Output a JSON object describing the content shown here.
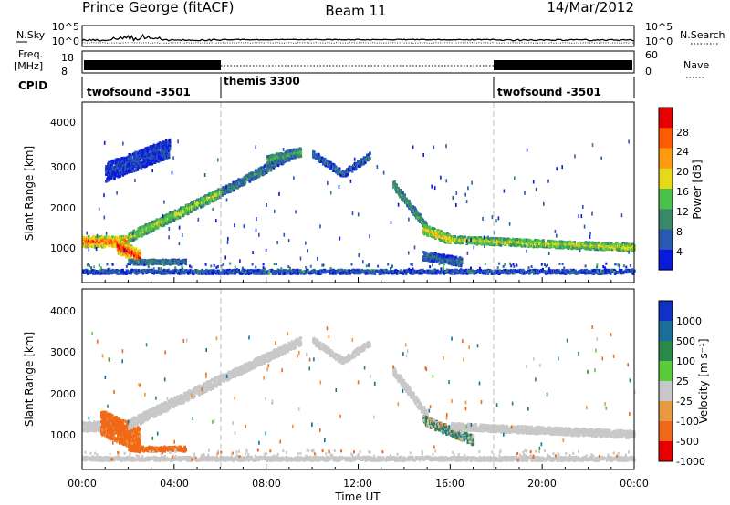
{
  "header": {
    "station": "Prince George (fitACF)",
    "beam": "Beam 11",
    "date": "14/Mar/2012"
  },
  "strips": {
    "nsky_label": "N.Sky",
    "nsearch_label": "N.Search",
    "freq_label_top": "Freq.",
    "freq_label_unit": "[MHz]",
    "nave_label": "Nave",
    "cpid_label": "CPID",
    "noise_left_ticks": [
      "10^5",
      "10^0"
    ],
    "noise_right_ticks": [
      "10^5",
      "10^0"
    ],
    "freq_left_ticks": [
      "18",
      "8"
    ],
    "nave_right_ticks": [
      "60",
      "0"
    ]
  },
  "cpid_segments": [
    {
      "name": "twofsound -3501",
      "start_hour": 0,
      "end_hour": 6
    },
    {
      "name": "themis 3300",
      "start_hour": 6,
      "end_hour": 18
    },
    {
      "name": "twofsound -3501",
      "start_hour": 18,
      "end_hour": 24
    }
  ],
  "x_axis": {
    "title": "Time UT",
    "ticks": [
      "00:00",
      "04:00",
      "08:00",
      "12:00",
      "16:00",
      "20:00",
      "00:00"
    ],
    "range_hours": [
      0,
      24
    ]
  },
  "panels": {
    "power": {
      "ylabel": "Slant Range [km]",
      "yticks": [
        "4000",
        "3000",
        "2000",
        "1000"
      ],
      "cbar_label": "Power [dB]",
      "cbar_ticks": [
        "28",
        "24",
        "20",
        "16",
        "12",
        "8",
        "4"
      ]
    },
    "velocity": {
      "ylabel": "Slant Range [km]",
      "yticks": [
        "4000",
        "3000",
        "2000",
        "1000"
      ],
      "cbar_label": "Velocity [m s⁻¹]",
      "cbar_ticks": [
        "1000",
        "500",
        "100",
        "25",
        "-25",
        "-100",
        "-500",
        "-1000"
      ]
    }
  },
  "chart_data": [
    {
      "type": "heatmap",
      "title": "Power",
      "xlabel": "Time UT",
      "ylabel": "Slant Range [km]",
      "xlim_hours": [
        0,
        24
      ],
      "ylim_km": [
        180,
        4600
      ],
      "colorbar": {
        "label": "Power [dB]",
        "range": [
          0,
          30
        ],
        "ticks": [
          4,
          8,
          12,
          16,
          20,
          24,
          28
        ]
      },
      "colors": [
        "#0a1adc",
        "#2a5ab0",
        "#3a8a6a",
        "#4ac24a",
        "#e8d81a",
        "#ff9a10",
        "#ff5a00",
        "#e80000"
      ],
      "echo_bands": [
        {
          "t_start": 0.0,
          "t_end": 2.0,
          "range_start_km": 1000,
          "range_end_km": 1000,
          "width_km": 260,
          "power_db": 22
        },
        {
          "t_start": 1.5,
          "t_end": 2.5,
          "range_start_km": 900,
          "range_end_km": 600,
          "width_km": 350,
          "power_db": 24
        },
        {
          "t_start": 2.0,
          "t_end": 6.0,
          "range_start_km": 1100,
          "range_end_km": 2200,
          "width_km": 230,
          "power_db": 14
        },
        {
          "t_start": 6.0,
          "t_end": 9.0,
          "range_start_km": 2200,
          "range_end_km": 3100,
          "width_km": 200,
          "power_db": 8
        },
        {
          "t_start": 8.0,
          "t_end": 9.5,
          "range_start_km": 3000,
          "range_end_km": 3200,
          "width_km": 200,
          "power_db": 10
        },
        {
          "t_start": 10.0,
          "t_end": 11.3,
          "range_start_km": 3150,
          "range_end_km": 2650,
          "width_km": 160,
          "power_db": 6
        },
        {
          "t_start": 11.3,
          "t_end": 12.5,
          "range_start_km": 2650,
          "range_end_km": 3100,
          "width_km": 160,
          "power_db": 6
        },
        {
          "t_start": 13.5,
          "t_end": 15.0,
          "range_start_km": 2400,
          "range_end_km": 1300,
          "width_km": 200,
          "power_db": 10
        },
        {
          "t_start": 14.8,
          "t_end": 16.0,
          "range_start_km": 1300,
          "range_end_km": 1050,
          "width_km": 230,
          "power_db": 17
        },
        {
          "t_start": 16.0,
          "t_end": 24.0,
          "range_start_km": 1050,
          "range_end_km": 850,
          "width_km": 170,
          "power_db": 15
        },
        {
          "t_start": 2.0,
          "t_end": 4.5,
          "range_start_km": 500,
          "range_end_km": 500,
          "width_km": 110,
          "power_db": 8
        },
        {
          "t_start": 14.8,
          "t_end": 16.5,
          "range_start_km": 650,
          "range_end_km": 500,
          "width_km": 200,
          "power_db": 6
        },
        {
          "t_start": 1.0,
          "t_end": 3.8,
          "range_start_km": 2700,
          "range_end_km": 3300,
          "width_km": 450,
          "power_db": 4
        },
        {
          "t_start": 0.0,
          "t_end": 24.0,
          "range_start_km": 260,
          "range_end_km": 260,
          "width_km": 90,
          "power_db": 5
        }
      ]
    },
    {
      "type": "heatmap",
      "title": "Velocity",
      "xlabel": "Time UT",
      "ylabel": "Slant Range [km]",
      "xlim_hours": [
        0,
        24
      ],
      "ylim_km": [
        180,
        4600
      ],
      "colorbar": {
        "label": "Velocity [m s⁻¹]",
        "levels": [
          1000,
          500,
          100,
          25,
          -25,
          -100,
          -500,
          -1000
        ]
      },
      "colors": [
        "#1030c8",
        "#1a6e9a",
        "#2a8a4a",
        "#5acc3a",
        "#c8c8c8",
        "#e89a40",
        "#f06818",
        "#e80000"
      ],
      "echo_bands": [
        {
          "t_start": 0.0,
          "t_end": 1.5,
          "range_start_km": 1050,
          "range_end_km": 1050,
          "width_km": 230,
          "velocity_ms": 0
        },
        {
          "t_start": 0.8,
          "t_end": 2.5,
          "range_start_km": 1150,
          "range_end_km": 700,
          "width_km": 600,
          "velocity_ms": -200
        },
        {
          "t_start": 2.0,
          "t_end": 6.0,
          "range_start_km": 1100,
          "range_end_km": 2200,
          "width_km": 230,
          "velocity_ms": 0
        },
        {
          "t_start": 6.0,
          "t_end": 9.5,
          "range_start_km": 2200,
          "range_end_km": 3150,
          "width_km": 200,
          "velocity_ms": 0
        },
        {
          "t_start": 10.0,
          "t_end": 11.3,
          "range_start_km": 3150,
          "range_end_km": 2650,
          "width_km": 160,
          "velocity_ms": 0
        },
        {
          "t_start": 11.3,
          "t_end": 12.5,
          "range_start_km": 2650,
          "range_end_km": 3100,
          "width_km": 160,
          "velocity_ms": 0
        },
        {
          "t_start": 13.5,
          "t_end": 15.0,
          "range_start_km": 2400,
          "range_end_km": 1300,
          "width_km": 200,
          "velocity_ms": 0
        },
        {
          "t_start": 14.8,
          "t_end": 17.0,
          "range_start_km": 1200,
          "range_end_km": 700,
          "width_km": 230,
          "velocity_ms": 60
        },
        {
          "t_start": 16.0,
          "t_end": 24.0,
          "range_start_km": 1050,
          "range_end_km": 850,
          "width_km": 170,
          "velocity_ms": 0
        },
        {
          "t_start": 2.0,
          "t_end": 4.5,
          "range_start_km": 500,
          "range_end_km": 500,
          "width_km": 110,
          "velocity_ms": -200
        },
        {
          "t_start": 0.0,
          "t_end": 24.0,
          "range_start_km": 260,
          "range_end_km": 260,
          "width_km": 90,
          "velocity_ms": 0
        }
      ]
    }
  ]
}
